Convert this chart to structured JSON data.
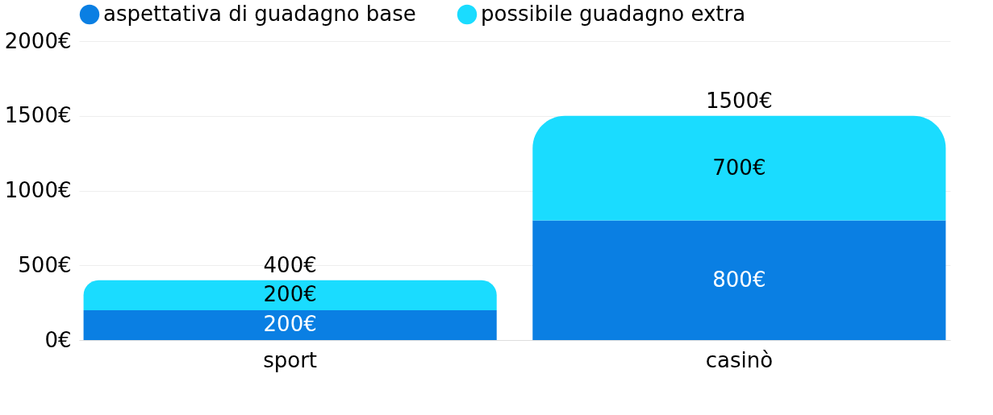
{
  "chart_data": {
    "type": "bar",
    "stacked": true,
    "categories": [
      "sport",
      "casinò"
    ],
    "series": [
      {
        "name": "aspettativa di guadagno base",
        "color": "#0a7fe3",
        "values": [
          200,
          800
        ],
        "value_labels": [
          "200€",
          "800€"
        ]
      },
      {
        "name": "possibile guadagno extra",
        "color": "#1adcff",
        "values": [
          200,
          700
        ],
        "value_labels": [
          "200€",
          "700€"
        ]
      }
    ],
    "totals": [
      "400€",
      "1500€"
    ],
    "ylim": [
      0,
      2000
    ],
    "yticks": [
      {
        "value": 0,
        "label": "0€"
      },
      {
        "value": 500,
        "label": "500€"
      },
      {
        "value": 1000,
        "label": "1000€"
      },
      {
        "value": 1500,
        "label": "1500€"
      },
      {
        "value": 2000,
        "label": "2000€"
      }
    ],
    "grid": "y",
    "legend": "top"
  }
}
